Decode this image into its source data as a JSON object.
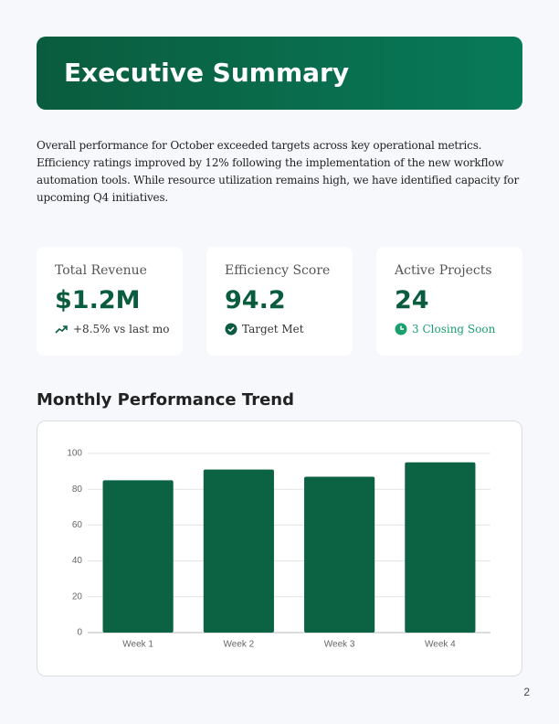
{
  "header": {
    "title": "Executive Summary"
  },
  "intro": "Overall performance for October exceeded targets across key operational metrics. Efficiency ratings improved by 12% following the implementation of the new workflow automation tools. While resource utilization remains high, we have identified capacity for upcoming Q4 initiatives.",
  "kpis": [
    {
      "label": "Total Revenue",
      "value": "$1.2M",
      "note": "+8.5% vs last mo"
    },
    {
      "label": "Efficiency Score",
      "value": "94.2",
      "note": "Target Met"
    },
    {
      "label": "Active Projects",
      "value": "24",
      "note": "3 Closing Soon"
    }
  ],
  "section_title": "Monthly Performance Trend",
  "chart_data": {
    "type": "bar",
    "categories": [
      "Week 1",
      "Week 2",
      "Week 3",
      "Week 4"
    ],
    "values": [
      85,
      91,
      87,
      95
    ],
    "color": "#0b6343",
    "ylim": [
      0,
      100
    ],
    "yticks": [
      0,
      20,
      40,
      60,
      80,
      100
    ],
    "grid": true
  },
  "page_number": "2"
}
